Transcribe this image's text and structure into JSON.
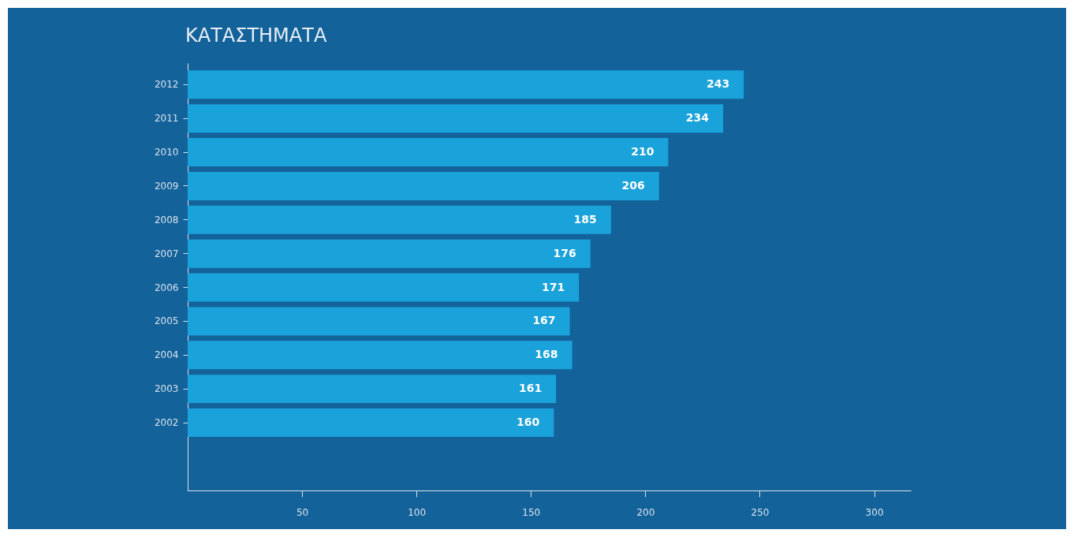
{
  "chart_data": {
    "type": "bar",
    "orientation": "horizontal",
    "title": "ΚΑΤΑΣΤΗΜΑΤΑ",
    "categories": [
      "2012",
      "2011",
      "2010",
      "2009",
      "2008",
      "2007",
      "2006",
      "2005",
      "2004",
      "2003",
      "2002"
    ],
    "values": [
      243,
      234,
      210,
      206,
      185,
      176,
      171,
      167,
      168,
      161,
      160
    ],
    "color": "#1aa2da",
    "data_labels": true,
    "grid": false,
    "xlim": [
      0,
      316
    ],
    "xticks": [
      50,
      100,
      150,
      200,
      250,
      300
    ]
  }
}
